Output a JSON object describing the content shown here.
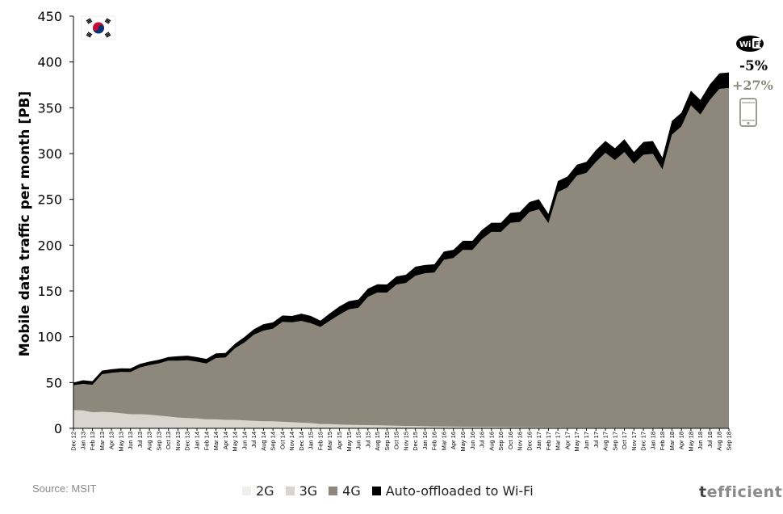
{
  "chart_data": {
    "type": "area",
    "xlabel": "",
    "ylabel": "Mobile data traffic per month [PB]",
    "ylim": [
      0,
      450
    ],
    "yticks": [
      0,
      50,
      100,
      150,
      200,
      250,
      300,
      350,
      400,
      450
    ],
    "grid": false,
    "legend_position": "bottom",
    "x": [
      "Dec 12",
      "Jan 13",
      "Feb 13",
      "Mar 13",
      "Apr 13",
      "May 13",
      "Jun 13",
      "Jul 13",
      "Aug 13",
      "Sep 13",
      "Oct 13",
      "Nov 13",
      "Dec 13",
      "Jan 14",
      "Feb 14",
      "Mar 14",
      "Apr 14",
      "May 14",
      "Jun 14",
      "Jul 14",
      "Aug 14",
      "Sep 14",
      "Oct 14",
      "Nov 14",
      "Dec 14",
      "Jan 15",
      "Feb 15",
      "Mar 15",
      "Apr 15",
      "May 15",
      "Jun 15",
      "Jul 15",
      "Aug 15",
      "Sep 15",
      "Oct 15",
      "Nov 15",
      "Dec 15",
      "Jan 16",
      "Feb 16",
      "Mar 16",
      "Apr 16",
      "May 16",
      "Jun 16",
      "Jul 16",
      "Aug 16",
      "Sep 16",
      "Oct 16",
      "Nov 16",
      "Dec 16",
      "Jan 17",
      "Feb 17",
      "Mar 17",
      "Apr 17",
      "May 17",
      "Jun 17",
      "Jul 17",
      "Aug 17",
      "Sep 17",
      "Oct 17",
      "Nov 17",
      "Dec 17",
      "Jan 18",
      "Feb 18",
      "Mar 18",
      "Apr 18",
      "May 18",
      "Jun 18",
      "Jul 18",
      "Aug 18",
      "Sep 18"
    ],
    "series": [
      {
        "name": "2G",
        "color": "#f2efea",
        "values": [
          0.5,
          0.5,
          0.5,
          0.5,
          0.5,
          0.5,
          0.4,
          0.4,
          0.4,
          0.4,
          0.4,
          0.3,
          0.3,
          0.3,
          0.3,
          0.3,
          0.3,
          0.3,
          0.2,
          0.2,
          0.2,
          0.2,
          0.2,
          0.2,
          0.2,
          0.2,
          0.1,
          0.1,
          0.1,
          0.1,
          0.1,
          0.1,
          0.1,
          0.1,
          0.1,
          0.1,
          0.1,
          0.1,
          0.1,
          0.1,
          0.1,
          0.1,
          0.1,
          0.1,
          0.1,
          0.1,
          0.1,
          0.1,
          0.1,
          0.1,
          0.1,
          0.1,
          0.1,
          0.1,
          0.1,
          0.1,
          0.1,
          0.1,
          0.1,
          0.1,
          0.1,
          0.1,
          0.1,
          0.1,
          0.1,
          0.1,
          0.1,
          0.1,
          0.1,
          0.1
        ]
      },
      {
        "name": "3G",
        "color": "#d9d4cd",
        "values": [
          19.5,
          19,
          17,
          17.5,
          17,
          16,
          15,
          15,
          14.5,
          13.5,
          12.5,
          11.5,
          11,
          10.5,
          9.5,
          9.5,
          9,
          9,
          8.5,
          8,
          7.5,
          7.5,
          7,
          6.5,
          6,
          5.5,
          4.5,
          4.5,
          4,
          3.8,
          3.5,
          3.4,
          3.2,
          3,
          2.8,
          2.6,
          2.4,
          2.2,
          2,
          1.9,
          1.8,
          1.7,
          1.6,
          1.5,
          1.4,
          1.3,
          1.2,
          1.1,
          1,
          1,
          0.9,
          0.9,
          0.8,
          0.8,
          0.8,
          0.7,
          0.7,
          0.7,
          0.6,
          0.6,
          0.6,
          0.6,
          0.5,
          0.5,
          0.5,
          0.5,
          0.5,
          0.5,
          0.5,
          0.5
        ]
      },
      {
        "name": "4G",
        "color": "#8d887b",
        "values": [
          27,
          29,
          30,
          41,
          43,
          45,
          46,
          51,
          54,
          57,
          61,
          62,
          63,
          62,
          61,
          67,
          68,
          78,
          85,
          94,
          99,
          101,
          109,
          109,
          111,
          109,
          106,
          113,
          120,
          126,
          128,
          140,
          145,
          145,
          154,
          156,
          164,
          167,
          168,
          182,
          184,
          193,
          193,
          205,
          213,
          213,
          223,
          224,
          235,
          238,
          223,
          257,
          262,
          275,
          278,
          290,
          300,
          292,
          301,
          288,
          298,
          299,
          282,
          320,
          329,
          352,
          342,
          358,
          370,
          371
        ]
      },
      {
        "name": "Auto-offloaded to Wi-Fi",
        "color": "#000000",
        "values": [
          3,
          4,
          4,
          4,
          4,
          4,
          4,
          4,
          4,
          4,
          4,
          5,
          5,
          5,
          5,
          5,
          5,
          5,
          6,
          6,
          7,
          7,
          7,
          7,
          8,
          8,
          7,
          8,
          9,
          9,
          9,
          9,
          9,
          9,
          9,
          9,
          10,
          9,
          9,
          9,
          9,
          10,
          10,
          10,
          10,
          10,
          11,
          11,
          11,
          11,
          10,
          12,
          12,
          12,
          12,
          13,
          13,
          13,
          14,
          13,
          14,
          14,
          13,
          15,
          15,
          16,
          16,
          17,
          17,
          17
        ]
      }
    ],
    "annotations": {
      "wifi_change": "-5%",
      "mobile_change": "+27%"
    }
  },
  "source": "Source: MSIT",
  "brand": {
    "first": "t",
    "rest": "efficient"
  },
  "legend": [
    "2G",
    "3G",
    "4G",
    "Auto-offloaded to Wi-Fi"
  ],
  "icons": {
    "flag": "south-korea-flag-icon",
    "wifi": "wifi-icon",
    "phone": "smartphone-icon"
  }
}
